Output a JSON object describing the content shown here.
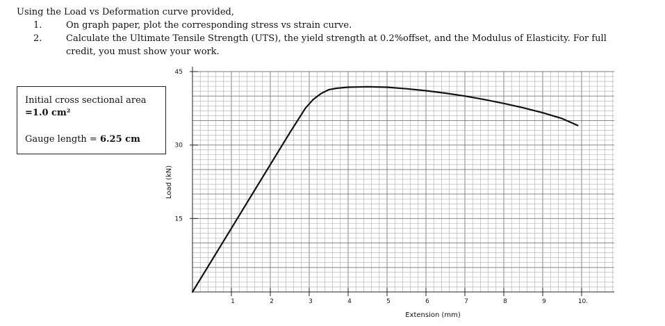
{
  "problem": {
    "intro": "Using the Load vs Deformation curve provided,",
    "items": [
      {
        "num": "1.",
        "text": "On graph paper, plot the corresponding stress vs strain curve."
      },
      {
        "num": "2.",
        "text": "Calculate the Ultimate Tensile Strength (UTS), the yield strength at 0.2%offset, and the Modulus of Elasticity. For full credit, you must show your work."
      }
    ]
  },
  "info_box": {
    "area_label": "Initial cross sectional area",
    "area_value": "=1.0 cm²",
    "gauge_label": "Gauge length = ",
    "gauge_value": "6.25 cm"
  },
  "chart_data": {
    "type": "line",
    "xlabel": "Extension (mm)",
    "ylabel": "Load (kN)",
    "xlim": [
      0,
      10.5
    ],
    "ylim": [
      0,
      45
    ],
    "xticks": [
      {
        "value": 1,
        "label": "1"
      },
      {
        "value": 2,
        "label": "2"
      },
      {
        "value": 3,
        "label": "3"
      },
      {
        "value": 4,
        "label": "4"
      },
      {
        "value": 5,
        "label": "5"
      },
      {
        "value": 6,
        "label": "6"
      },
      {
        "value": 7,
        "label": "7"
      },
      {
        "value": 8,
        "label": "8"
      },
      {
        "value": 9,
        "label": "9"
      },
      {
        "value": 10,
        "label": "10."
      }
    ],
    "yticks": [
      {
        "value": 15,
        "label": "15"
      },
      {
        "value": 30,
        "label": "30"
      },
      {
        "value": 45,
        "label": "45"
      }
    ],
    "grid": true,
    "series": [
      {
        "color": "#111111",
        "x": [
          0,
          0.5,
          1.0,
          1.5,
          2.0,
          2.5,
          2.9,
          3.1,
          3.3,
          3.5,
          3.7,
          4.0,
          4.5,
          5.0,
          5.5,
          6.0,
          6.5,
          7.0,
          7.5,
          8.0,
          8.5,
          9.0,
          9.5,
          9.9
        ],
        "y": [
          0,
          6.5,
          13,
          19.5,
          26,
          32.5,
          37.5,
          39.3,
          40.5,
          41.3,
          41.6,
          41.8,
          41.9,
          41.8,
          41.5,
          41.1,
          40.6,
          40.0,
          39.3,
          38.5,
          37.6,
          36.6,
          35.4,
          34.0
        ]
      }
    ]
  }
}
